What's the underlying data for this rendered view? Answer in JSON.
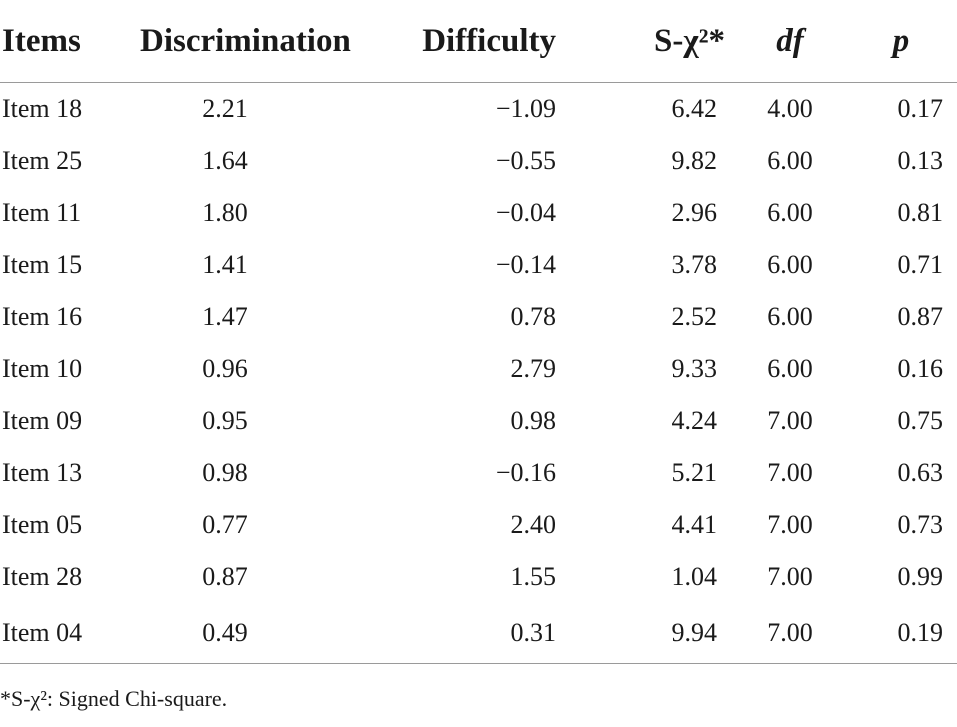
{
  "table": {
    "headers": {
      "items": "Items",
      "discrimination": "Discrimination",
      "difficulty": "Difficulty",
      "chi": "S-χ²*",
      "df": "df",
      "p": "p"
    },
    "rows": [
      {
        "item": "Item 18",
        "discrimination": "2.21",
        "difficulty": "−1.09",
        "chi": "6.42",
        "df": "4.00",
        "p": "0.17"
      },
      {
        "item": "Item 25",
        "discrimination": "1.64",
        "difficulty": "−0.55",
        "chi": "9.82",
        "df": "6.00",
        "p": "0.13"
      },
      {
        "item": "Item 11",
        "discrimination": "1.80",
        "difficulty": "−0.04",
        "chi": "2.96",
        "df": "6.00",
        "p": "0.81"
      },
      {
        "item": "Item 15",
        "discrimination": "1.41",
        "difficulty": "−0.14",
        "chi": "3.78",
        "df": "6.00",
        "p": "0.71"
      },
      {
        "item": "Item 16",
        "discrimination": "1.47",
        "difficulty": "0.78",
        "chi": "2.52",
        "df": "6.00",
        "p": "0.87"
      },
      {
        "item": "Item 10",
        "discrimination": "0.96",
        "difficulty": "2.79",
        "chi": "9.33",
        "df": "6.00",
        "p": "0.16"
      },
      {
        "item": "Item 09",
        "discrimination": "0.95",
        "difficulty": "0.98",
        "chi": "4.24",
        "df": "7.00",
        "p": "0.75"
      },
      {
        "item": "Item 13",
        "discrimination": "0.98",
        "difficulty": "−0.16",
        "chi": "5.21",
        "df": "7.00",
        "p": "0.63"
      },
      {
        "item": "Item 05",
        "discrimination": "0.77",
        "difficulty": "2.40",
        "chi": "4.41",
        "df": "7.00",
        "p": "0.73"
      },
      {
        "item": "Item 28",
        "discrimination": "0.87",
        "difficulty": "1.55",
        "chi": "1.04",
        "df": "7.00",
        "p": "0.99"
      },
      {
        "item": "Item 04",
        "discrimination": "0.49",
        "difficulty": "0.31",
        "chi": "9.94",
        "df": "7.00",
        "p": "0.19"
      }
    ]
  },
  "footnote": "*S-χ²: Signed Chi-square."
}
